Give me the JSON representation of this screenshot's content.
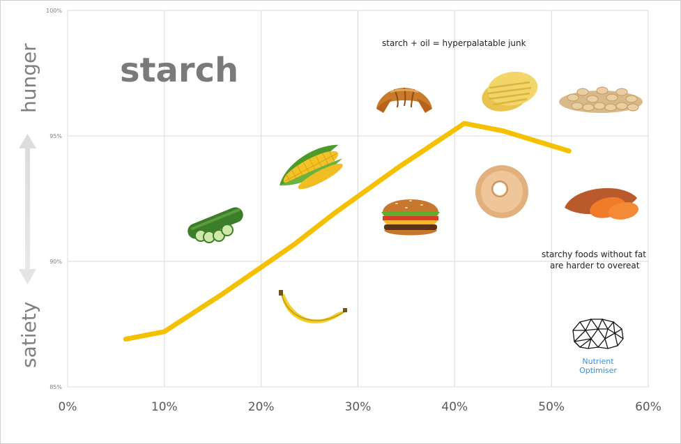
{
  "chart_data": {
    "type": "line",
    "title": "starch",
    "x": [
      6,
      10,
      16,
      23.5,
      27.5,
      34,
      41,
      45,
      51.8
    ],
    "values": [
      86.9,
      87.2,
      88.7,
      90.7,
      91.9,
      93.7,
      95.5,
      95.2,
      94.4
    ],
    "xlim": [
      0,
      60
    ],
    "ylim": [
      85,
      100
    ],
    "x_ticks": [
      "0%",
      "10%",
      "20%",
      "30%",
      "40%",
      "50%",
      "60%"
    ],
    "y_ticks": [
      "85%",
      "90%",
      "95%",
      "100%"
    ],
    "ylabel_top": "hunger",
    "ylabel_bottom": "satiety",
    "line_color": "#f5c000",
    "annotations": {
      "top": "starch + oil = hyperpalatable junk",
      "right_line1": "starchy foods without fat",
      "right_line2": "are harder to overeat"
    },
    "food_icons": [
      "croissant-icon",
      "chips-icon",
      "oats-icon",
      "corn-icon",
      "cucumber-icon",
      "burger-icon",
      "donut-icon",
      "sweet-potato-icon",
      "banana-icon"
    ]
  },
  "logo": {
    "line1": "Nutrient",
    "line2": "Optimiser"
  }
}
